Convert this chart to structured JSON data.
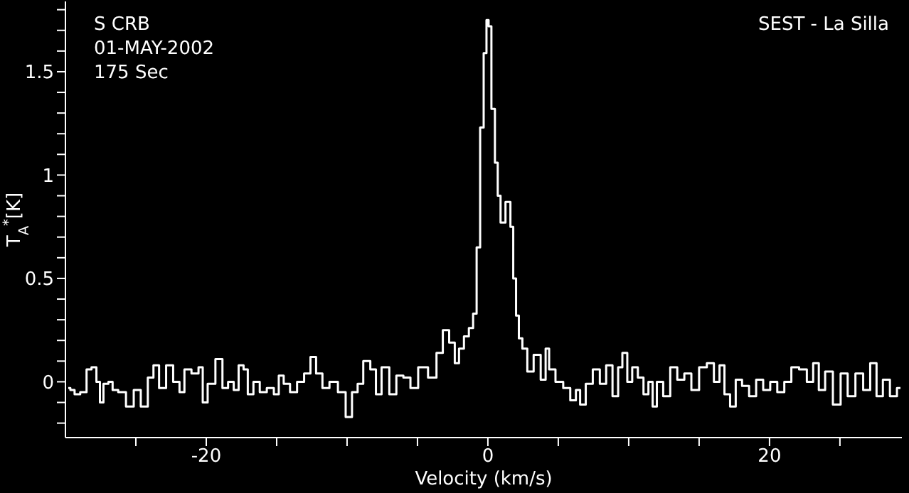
{
  "chart_data": {
    "type": "step",
    "xlabel": "Velocity (km/s)",
    "ylabel": "T$_{A}$$^{*}$[K]",
    "annotations": [
      "S CRB",
      "01-MAY-2002",
      "175 Sec",
      "SEST - La Silla"
    ],
    "xlim": [
      -30,
      29.4
    ],
    "ylim": [
      -0.27,
      1.84
    ],
    "xticks": [
      {
        "value": -25,
        "label": null
      },
      -20,
      {
        "value": -15,
        "label": null
      },
      {
        "value": -10,
        "label": null
      },
      {
        "value": -5,
        "label": null
      },
      0,
      {
        "value": 5,
        "label": null
      },
      {
        "value": 10,
        "label": null
      },
      {
        "value": 15,
        "label": null
      },
      20,
      {
        "value": 25,
        "label": null
      }
    ],
    "yticks": [
      {
        "value": -0.2,
        "label": null
      },
      {
        "value": -0.1,
        "label": null
      },
      0,
      {
        "value": 0.1,
        "label": null
      },
      {
        "value": 0.2,
        "label": null
      },
      {
        "value": 0.3,
        "label": null
      },
      {
        "value": 0.4,
        "label": null
      },
      0.5,
      {
        "value": 0.6,
        "label": null
      },
      {
        "value": 0.7,
        "label": null
      },
      {
        "value": 0.8,
        "label": null
      },
      {
        "value": 0.9,
        "label": null
      },
      1,
      {
        "value": 1.1,
        "label": null
      },
      {
        "value": 1.2,
        "label": null
      },
      {
        "value": 1.3,
        "label": null
      },
      {
        "value": 1.4,
        "label": null
      },
      1.5,
      {
        "value": 1.6,
        "label": null
      },
      {
        "value": 1.7,
        "label": null
      },
      {
        "value": 1.8,
        "label": null
      }
    ],
    "series": [
      {
        "color": "#ffffff",
        "x": [
          -29.8,
          -29.5,
          -29.2,
          -28.7,
          -28.3,
          -28.0,
          -27.6,
          -27.5,
          -27.1,
          -26.8,
          -26.5,
          -26.0,
          -25.4,
          -24.9,
          -24.4,
          -23.9,
          -23.6,
          -23.1,
          -22.6,
          -22.1,
          -21.7,
          -21.4,
          -20.7,
          -20.4,
          -20.1,
          -19.7,
          -19.0,
          -18.7,
          -18.2,
          -17.9,
          -17.5,
          -17.2,
          -16.9,
          -16.4,
          -16.0,
          -15.4,
          -15.0,
          -14.7,
          -14.3,
          -13.8,
          -13.3,
          -12.8,
          -12.4,
          -12.0,
          -11.5,
          -11.0,
          -10.3,
          -9.9,
          -9.4,
          -9.1,
          -8.6,
          -8.1,
          -7.8,
          -7.3,
          -6.7,
          -6.3,
          -5.7,
          -5.3,
          -4.6,
          -3.9,
          -3.4,
          -3.0,
          -2.5,
          -2.2,
          -1.9,
          -1.5,
          -1.2,
          -0.9,
          -0.7,
          -0.4,
          -0.2,
          0.0,
          0.1,
          0.4,
          0.6,
          0.8,
          1.0,
          1.5,
          1.7,
          1.9,
          2.1,
          2.3,
          2.6,
          3.0,
          3.5,
          4.0,
          4.2,
          4.5,
          5.1,
          5.6,
          6.1,
          6.4,
          6.7,
          7.2,
          7.7,
          8.2,
          8.6,
          9.1,
          9.4,
          9.7,
          10.1,
          10.4,
          10.9,
          11.2,
          11.6,
          11.8,
          12.2,
          12.7,
          13.2,
          13.7,
          14.2,
          14.7,
          15.3,
          15.8,
          16.3,
          16.6,
          17.0,
          17.4,
          17.8,
          18.3,
          18.8,
          19.3,
          19.8,
          20.3,
          20.8,
          21.3,
          21.8,
          22.4,
          22.9,
          23.3,
          23.7,
          24.2,
          24.8,
          25.3,
          25.8,
          26.4,
          26.9,
          27.4,
          27.8,
          28.3,
          28.8,
          29.3
        ],
        "values": [
          -0.03,
          -0.04,
          -0.06,
          -0.05,
          0.06,
          0.07,
          0,
          -0.1,
          -0.01,
          0,
          -0.04,
          -0.05,
          -0.12,
          -0.04,
          -0.12,
          0.02,
          0.08,
          -0.03,
          0.08,
          0,
          -0.05,
          0.06,
          0.04,
          0.07,
          -0.1,
          -0.01,
          0.11,
          -0.03,
          0,
          -0.04,
          0.08,
          0.06,
          -0.06,
          0,
          -0.05,
          -0.03,
          -0.06,
          0.03,
          -0.01,
          -0.05,
          0,
          0.04,
          0.12,
          0.04,
          -0.03,
          0,
          -0.05,
          -0.17,
          -0.05,
          -0.01,
          0.1,
          0.06,
          -0.06,
          0.07,
          -0.06,
          0.03,
          0.02,
          -0.03,
          0.07,
          0.02,
          0.14,
          0.25,
          0.19,
          0.09,
          0.16,
          0.22,
          0.26,
          0.33,
          0.65,
          1.23,
          1.59,
          1.75,
          1.72,
          1.32,
          1.06,
          0.9,
          0.77,
          0.87,
          0.75,
          0.5,
          0.32,
          0.21,
          0.16,
          0.05,
          0.13,
          0.01,
          0.16,
          0.06,
          0,
          -0.03,
          -0.09,
          -0.04,
          -0.11,
          -0.01,
          0.06,
          -0.01,
          0.08,
          -0.07,
          0.07,
          0.14,
          0,
          0.07,
          0.02,
          -0.06,
          0,
          -0.12,
          0,
          -0.07,
          0.07,
          0.01,
          0.04,
          -0.04,
          0.07,
          0.09,
          0,
          0.08,
          -0.06,
          -0.12,
          0.01,
          -0.02,
          -0.07,
          0.01,
          -0.04,
          0,
          -0.05,
          0,
          0.07,
          0.06,
          0,
          0.09,
          -0.04,
          0.05,
          -0.11,
          0.04,
          -0.07,
          0.04,
          -0.04,
          0.09,
          -0.07,
          0.01,
          -0.07,
          -0.03
        ]
      }
    ]
  }
}
